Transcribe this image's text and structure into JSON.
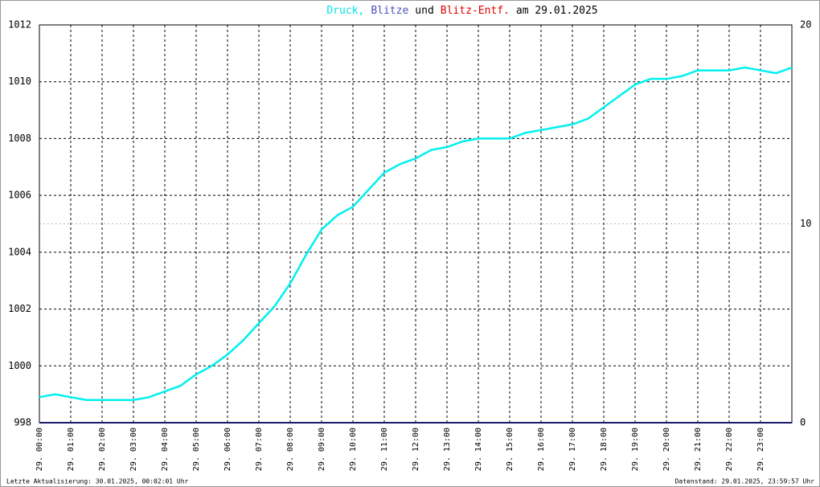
{
  "chart_data": {
    "type": "line",
    "title_parts": [
      {
        "text": "Druck,",
        "color": "#00e5e5"
      },
      {
        "text": "Blitze",
        "color": "#5050c0"
      },
      {
        "text": "und",
        "color": "#000000"
      },
      {
        "text": "Blitz-Entf.",
        "color": "#e00000"
      },
      {
        "text": "am 29.01.2025",
        "color": "#000000"
      }
    ],
    "xlim": [
      0,
      24
    ],
    "xticks": [
      {
        "value": 0,
        "label": "29. 00:00"
      },
      {
        "value": 1,
        "label": "29. 01:00"
      },
      {
        "value": 2,
        "label": "29. 02:00"
      },
      {
        "value": 3,
        "label": "29. 03:00"
      },
      {
        "value": 4,
        "label": "29. 04:00"
      },
      {
        "value": 5,
        "label": "29. 05:00"
      },
      {
        "value": 6,
        "label": "29. 06:00"
      },
      {
        "value": 7,
        "label": "29. 07:00"
      },
      {
        "value": 8,
        "label": "29. 08:00"
      },
      {
        "value": 9,
        "label": "29. 09:00"
      },
      {
        "value": 10,
        "label": "29. 10:00"
      },
      {
        "value": 11,
        "label": "29. 11:00"
      },
      {
        "value": 12,
        "label": "29. 12:00"
      },
      {
        "value": 13,
        "label": "29. 13:00"
      },
      {
        "value": 14,
        "label": "29. 14:00"
      },
      {
        "value": 15,
        "label": "29. 15:00"
      },
      {
        "value": 16,
        "label": "29. 16:00"
      },
      {
        "value": 17,
        "label": "29. 17:00"
      },
      {
        "value": 18,
        "label": "29. 18:00"
      },
      {
        "value": 19,
        "label": "29. 19:00"
      },
      {
        "value": 20,
        "label": "29. 20:00"
      },
      {
        "value": 21,
        "label": "29. 21:00"
      },
      {
        "value": 22,
        "label": "29. 22:00"
      },
      {
        "value": 23,
        "label": "29. 23:00"
      }
    ],
    "ylim": [
      998,
      1012
    ],
    "yticks": [
      998,
      1000,
      1002,
      1004,
      1006,
      1008,
      1010,
      1012
    ],
    "y2lim": [
      0,
      20
    ],
    "y2ticks": [
      0,
      10,
      20
    ],
    "y2tick_colors": [
      "#000000",
      "#e00000",
      "#000000"
    ],
    "y2tick_grid": [
      false,
      true,
      false
    ],
    "grid": true,
    "series": [
      {
        "color": "#00f0f0",
        "x": [
          0,
          0.5,
          1,
          1.5,
          2,
          2.5,
          3,
          3.5,
          4,
          4.5,
          5,
          5.5,
          6,
          6.5,
          7,
          7.5,
          8,
          8.5,
          9,
          9.5,
          10,
          10.5,
          11,
          11.5,
          12,
          12.5,
          13,
          13.5,
          14,
          14.5,
          15,
          15.5,
          16,
          16.5,
          17,
          17.5,
          18,
          18.5,
          19,
          19.5,
          20,
          20.5,
          21,
          21.5,
          22,
          22.5,
          23,
          23.5,
          24
        ],
        "values": [
          998.9,
          999.0,
          998.9,
          998.8,
          998.8,
          998.8,
          998.8,
          998.9,
          999.1,
          999.3,
          999.7,
          1000.0,
          1000.4,
          1000.9,
          1001.5,
          1002.1,
          1002.9,
          1003.9,
          1004.8,
          1005.3,
          1005.6,
          1006.2,
          1006.8,
          1007.1,
          1007.3,
          1007.6,
          1007.7,
          1007.9,
          1008.0,
          1008.0,
          1008.0,
          1008.2,
          1008.3,
          1008.4,
          1008.5,
          1008.7,
          1009.1,
          1009.5,
          1009.9,
          1010.1,
          1010.1,
          1010.2,
          1010.4,
          1010.4,
          1010.4,
          1010.5,
          1010.4,
          1010.3,
          1010.5
        ]
      },
      {
        "color": "#1a1a6e",
        "axis": "y2",
        "x": [
          0,
          24
        ],
        "values": [
          0,
          0
        ]
      }
    ],
    "footer_left": "Letzte Aktualisierung: 30.01.2025, 00:02:01 Uhr",
    "footer_right": "Datenstand: 29.01.2025, 23:59:57 Uhr"
  }
}
